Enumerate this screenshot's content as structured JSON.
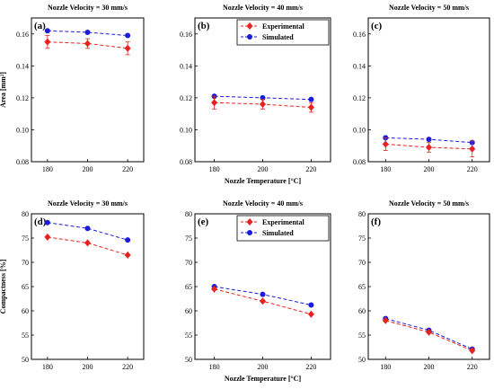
{
  "colors": {
    "experimental": "#e8221e",
    "simulated": "#1b1bdc"
  },
  "chart_data": [
    {
      "id": "a",
      "type": "line",
      "panel_label": "(a)",
      "title": "Nozzle Velocity = 30 mm/s",
      "xlabel": "",
      "ylabel": "Area [mm²]",
      "x": [
        180,
        200,
        220
      ],
      "xlim": [
        172,
        228
      ],
      "ylim": [
        0.08,
        0.17
      ],
      "xticks": [
        "180",
        "200",
        "220"
      ],
      "yticks": [
        "0.08",
        "0.10",
        "0.12",
        "0.14",
        "0.16"
      ],
      "legend": null,
      "series": [
        {
          "name": "Experimental",
          "values": [
            0.155,
            0.154,
            0.151
          ],
          "error": [
            0.004,
            0.003,
            0.004
          ]
        },
        {
          "name": "Simulated",
          "values": [
            0.162,
            0.161,
            0.159
          ]
        }
      ]
    },
    {
      "id": "b",
      "type": "line",
      "panel_label": "(b)",
      "title": "Nozzle Velocity = 40 mm/s",
      "xlabel": "Nozzle Temperature [°C]",
      "ylabel": "",
      "x": [
        180,
        200,
        220
      ],
      "xlim": [
        172,
        228
      ],
      "ylim": [
        0.08,
        0.17
      ],
      "xticks": [
        "180",
        "200",
        "220"
      ],
      "yticks": [
        "0.08",
        "0.10",
        "0.12",
        "0.14",
        "0.16"
      ],
      "legend": "top-right",
      "series": [
        {
          "name": "Experimental",
          "values": [
            0.117,
            0.116,
            0.114
          ],
          "error": [
            0.004,
            0.003,
            0.003
          ]
        },
        {
          "name": "Simulated",
          "values": [
            0.121,
            0.12,
            0.119
          ]
        }
      ]
    },
    {
      "id": "c",
      "type": "line",
      "panel_label": "(c)",
      "title": "Nozzle Velocity = 50 mm/s",
      "xlabel": "",
      "ylabel": "",
      "x": [
        180,
        200,
        220
      ],
      "xlim": [
        172,
        228
      ],
      "ylim": [
        0.08,
        0.17
      ],
      "xticks": [
        "180",
        "200",
        "220"
      ],
      "yticks": [
        "0.08",
        "0.10",
        "0.12",
        "0.14",
        "0.16"
      ],
      "legend": null,
      "series": [
        {
          "name": "Experimental",
          "values": [
            0.091,
            0.089,
            0.088
          ],
          "error": [
            0.004,
            0.003,
            0.005
          ]
        },
        {
          "name": "Simulated",
          "values": [
            0.095,
            0.094,
            0.092
          ]
        }
      ]
    },
    {
      "id": "d",
      "type": "line",
      "panel_label": "(d)",
      "title": "Nozzle Velocity = 30 mm/s",
      "xlabel": "",
      "ylabel": "Compactness [%]",
      "x": [
        180,
        200,
        220
      ],
      "xlim": [
        172,
        228
      ],
      "ylim": [
        50,
        80
      ],
      "xticks": [
        "180",
        "200",
        "220"
      ],
      "yticks": [
        "50",
        "55",
        "60",
        "65",
        "70",
        "75",
        "80"
      ],
      "legend": null,
      "series": [
        {
          "name": "Experimental",
          "values": [
            75.2,
            74.0,
            71.5
          ]
        },
        {
          "name": "Simulated",
          "values": [
            78.2,
            77.0,
            74.6
          ]
        }
      ]
    },
    {
      "id": "e",
      "type": "line",
      "panel_label": "(e)",
      "title": "Nozzle Velocity = 40 mm/s",
      "xlabel": "Nozzle Temperature [°C]",
      "ylabel": "",
      "x": [
        180,
        200,
        220
      ],
      "xlim": [
        172,
        228
      ],
      "ylim": [
        50,
        80
      ],
      "xticks": [
        "180",
        "200",
        "220"
      ],
      "yticks": [
        "50",
        "55",
        "60",
        "65",
        "70",
        "75",
        "80"
      ],
      "legend": "top-right",
      "series": [
        {
          "name": "Experimental",
          "values": [
            64.5,
            62.0,
            59.3
          ]
        },
        {
          "name": "Simulated",
          "values": [
            65.0,
            63.4,
            61.2
          ]
        }
      ]
    },
    {
      "id": "f",
      "type": "line",
      "panel_label": "(f)",
      "title": "Nozzle Velocity = 50 mm/s",
      "xlabel": "",
      "ylabel": "",
      "x": [
        180,
        200,
        220
      ],
      "xlim": [
        172,
        228
      ],
      "ylim": [
        50,
        80
      ],
      "xticks": [
        "180",
        "200",
        "220"
      ],
      "yticks": [
        "50",
        "55",
        "60",
        "65",
        "70",
        "75",
        "80"
      ],
      "legend": null,
      "series": [
        {
          "name": "Experimental",
          "values": [
            58.0,
            55.6,
            51.8
          ]
        },
        {
          "name": "Simulated",
          "values": [
            58.4,
            56.0,
            52.1
          ]
        }
      ]
    }
  ]
}
